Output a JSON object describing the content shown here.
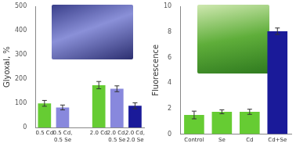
{
  "chart_data": [
    {
      "type": "bar",
      "y_label": "Glyoxal, %",
      "categories": [
        "0.5 Cd",
        "0.5 Cd, 0.5 Se",
        null,
        "2.0 Cd",
        "2.0 Cd, 0.5 Se",
        "2.0 Cd, 2.0 Se"
      ],
      "values": [
        100,
        83,
        null,
        175,
        160,
        90
      ],
      "errors": [
        12,
        10,
        null,
        15,
        12,
        12
      ],
      "colors": [
        "#66cc33",
        "#8888dd",
        null,
        "#66cc33",
        "#8888dd",
        "#1a1a99"
      ],
      "ylim": [
        0,
        500
      ],
      "yticks": [
        0,
        100,
        200,
        300,
        400,
        500
      ],
      "grid": false
    },
    {
      "type": "bar",
      "y_label": "Fluorescence",
      "categories": [
        "Control",
        "Se",
        "Cd",
        "Cd+Se"
      ],
      "values": [
        1.5,
        1.75,
        1.75,
        8.05
      ],
      "errors": [
        0.3,
        0.15,
        0.2,
        0.25
      ],
      "colors": [
        "#66cc33",
        "#66cc33",
        "#66cc33",
        "#1a1a99"
      ],
      "ylim": [
        0,
        10
      ],
      "yticks": [
        0,
        2,
        4,
        6,
        8,
        10
      ],
      "grid": false
    }
  ]
}
